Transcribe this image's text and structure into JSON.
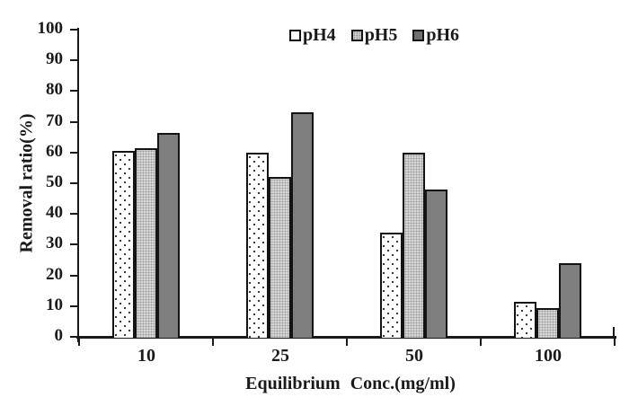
{
  "chart_data": {
    "type": "bar",
    "title": "",
    "categories": [
      "10",
      "25",
      "50",
      "100"
    ],
    "series": [
      {
        "name": "pH4",
        "values": [
          60.5,
          60,
          34,
          11.5
        ],
        "style": "white-dotted"
      },
      {
        "name": "pH5",
        "values": [
          61.5,
          52,
          60,
          9.5
        ],
        "style": "light-gray-fine-dots"
      },
      {
        "name": "pH6",
        "values": [
          66.5,
          73,
          48,
          24
        ],
        "style": "dark-gray-solid"
      }
    ],
    "xlabel": "Equilibrium Conc.(mg/ml)",
    "ylabel": "Removal ratio(%)",
    "ylim": [
      0,
      100
    ],
    "yticks": [
      0,
      10,
      20,
      30,
      40,
      50,
      60,
      70,
      80,
      90,
      100
    ],
    "legend_position": "top-center",
    "grid": false,
    "colors": {
      "ph4_fill": "#ffffff",
      "ph5_fill": "#d7d7d7",
      "ph6_fill": "#7e7e7e",
      "axis": "#1a1a1a",
      "text": "#1a1a1a"
    }
  }
}
